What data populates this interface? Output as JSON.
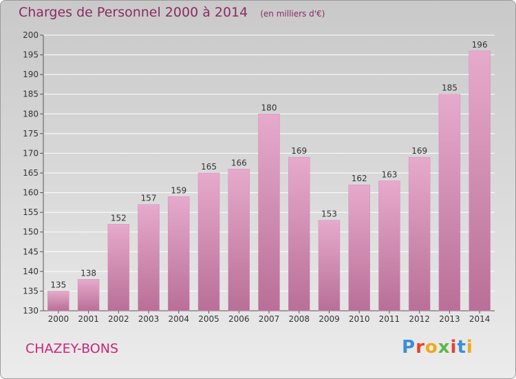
{
  "title": "Charges de Personnel 2000 à 2014",
  "subtitle": "(en milliers d'€)",
  "place": "CHAZEY-BONS",
  "brand": {
    "letters": [
      "P",
      "r",
      "o",
      "x",
      "i",
      "t",
      "i"
    ],
    "colors": [
      "#3b8fd6",
      "#e8412c",
      "#f0a81c",
      "#5cb848",
      "#e8412c",
      "#3b8fd6",
      "#f0a81c"
    ]
  },
  "colors": {
    "bar_top": "#e6aacc",
    "bar_bottom": "#b96f97",
    "title": "#8b2a63",
    "place": "#c8277a"
  },
  "chart_data": {
    "type": "bar",
    "categories": [
      "2000",
      "2001",
      "2002",
      "2003",
      "2004",
      "2005",
      "2006",
      "2007",
      "2008",
      "2009",
      "2010",
      "2011",
      "2012",
      "2013",
      "2014"
    ],
    "values": [
      135,
      138,
      152,
      157,
      159,
      165,
      166,
      180,
      169,
      153,
      162,
      163,
      169,
      185,
      196
    ],
    "ylim": [
      130,
      200
    ],
    "yticks": [
      130,
      135,
      140,
      145,
      150,
      155,
      160,
      165,
      170,
      175,
      180,
      185,
      190,
      195,
      200
    ],
    "grid": true,
    "data_labels": true
  }
}
